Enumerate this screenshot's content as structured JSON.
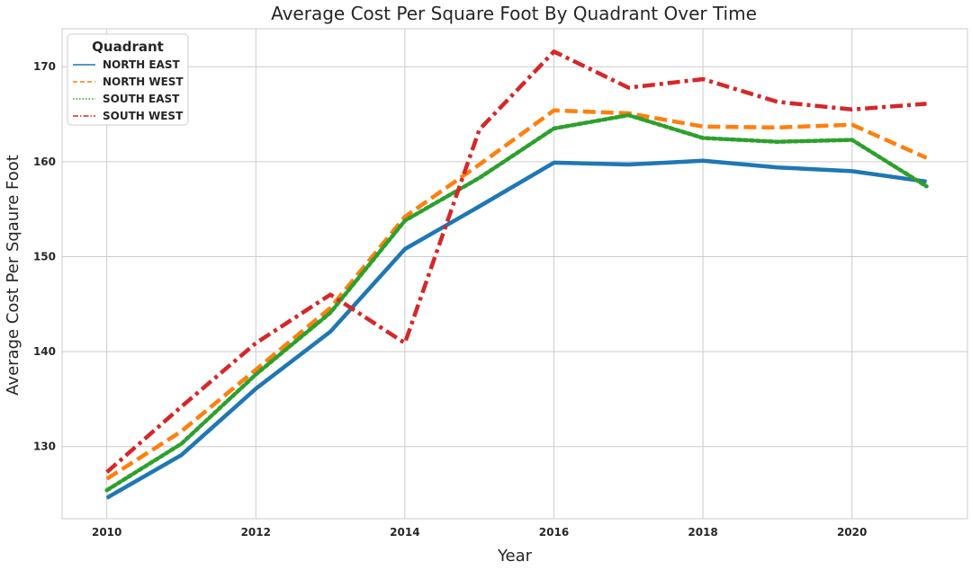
{
  "chart_data": {
    "type": "line",
    "title": "Average Cost Per Square Foot By Quadrant Over Time",
    "xlabel": "Year",
    "ylabel": "Average Cost Per Sqaure Foot",
    "xlim": [
      2009.4,
      2021.55
    ],
    "ylim": [
      122.4,
      174.0
    ],
    "x_ticks": [
      2010,
      2012,
      2014,
      2016,
      2018,
      2020
    ],
    "y_ticks": [
      130,
      140,
      150,
      160,
      170
    ],
    "grid": true,
    "legend": {
      "title": "Quadrant",
      "placement": "top-left"
    },
    "x": [
      2010,
      2011,
      2012,
      2013,
      2014,
      2015,
      2016,
      2017,
      2018,
      2019,
      2020,
      2021
    ],
    "series": [
      {
        "name": "NORTH EAST",
        "color": "#1f77b4",
        "style": "solid",
        "values": [
          124.6,
          129.1,
          136.1,
          142.1,
          150.8,
          155.3,
          159.9,
          159.7,
          160.1,
          159.4,
          159.0,
          157.9
        ]
      },
      {
        "name": "NORTH WEST",
        "color": "#ff7f0e",
        "style": "dashed",
        "values": [
          126.6,
          131.6,
          138.1,
          144.6,
          154.2,
          159.7,
          165.4,
          165.1,
          163.7,
          163.6,
          163.9,
          160.4
        ]
      },
      {
        "name": "SOUTH EAST",
        "color": "#2ca02c",
        "style": "dotted",
        "values": [
          125.4,
          130.3,
          137.6,
          144.1,
          153.8,
          158.3,
          163.5,
          164.9,
          162.5,
          162.1,
          162.3,
          157.4
        ]
      },
      {
        "name": "SOUTH WEST",
        "color": "#d62728",
        "style": "dashdot",
        "values": [
          127.3,
          134.2,
          140.9,
          146.0,
          140.9,
          163.4,
          171.6,
          167.8,
          168.7,
          166.3,
          165.5,
          166.1
        ]
      }
    ]
  }
}
